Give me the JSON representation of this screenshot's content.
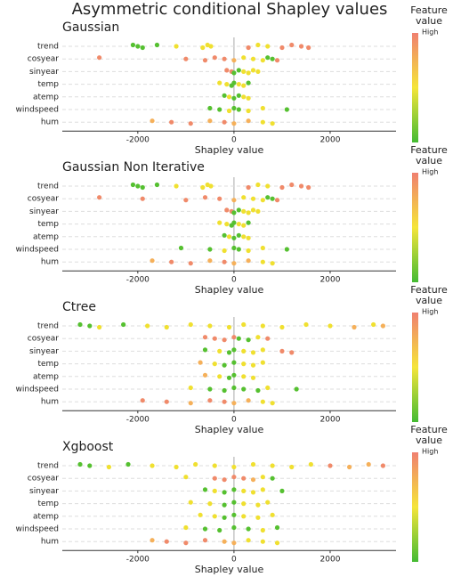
{
  "title": "Asymmetric conditional Shapley values",
  "chart_data": [
    {
      "type": "beeswarm",
      "title": "Gaussian",
      "xlabel": "Shapley value",
      "xlim": [
        -3570,
        3370
      ],
      "xticks": [
        -2000,
        0,
        2000
      ],
      "categories": [
        "trend",
        "cosyear",
        "sinyear",
        "temp",
        "atemp",
        "windspeed",
        "hum"
      ],
      "values": [
        [
          -2100,
          -2000,
          -1900,
          -1600,
          -1200,
          -650,
          -550,
          -480,
          300,
          500,
          700,
          1000,
          1200,
          1400,
          1550
        ],
        [
          -2800,
          -1000,
          -600,
          -400,
          -200,
          0,
          200,
          400,
          600,
          700,
          800,
          900
        ],
        [
          -150,
          -50,
          0,
          100,
          200,
          300,
          400,
          500
        ],
        [
          -300,
          -150,
          -50,
          0,
          100,
          200,
          300
        ],
        [
          -200,
          -100,
          0,
          100,
          200,
          300
        ],
        [
          -500,
          -300,
          -100,
          0,
          100,
          300,
          600,
          1100
        ],
        [
          -1700,
          -1300,
          -900,
          -500,
          -200,
          0,
          300,
          600,
          800
        ]
      ],
      "colors": [
        [
          "#55c030",
          "#55c030",
          "#55c030",
          "#55c030",
          "#f0e030",
          "#f0e030",
          "#f0e030",
          "#f0e030",
          "#f08a6a",
          "#f0e030",
          "#f0e030",
          "#f08a6a",
          "#f08a6a",
          "#f08a6a",
          "#f08a6a"
        ],
        [
          "#f08a6a",
          "#f08a6a",
          "#f08a6a",
          "#f08a6a",
          "#f08a6a",
          "#f5b05a",
          "#f0e030",
          "#f0e030",
          "#f0e030",
          "#55c030",
          "#55c030",
          "#f08a6a"
        ],
        [
          "#f08a6a",
          "#f08a6a",
          "#55c030",
          "#55c030",
          "#f0e030",
          "#f0e030",
          "#f0e030",
          "#f0e030"
        ],
        [
          "#f0e030",
          "#f0e030",
          "#55c030",
          "#55c030",
          "#f0e030",
          "#f0e030",
          "#55c030"
        ],
        [
          "#55c030",
          "#f0e030",
          "#55c030",
          "#55c030",
          "#f0e030",
          "#f0e030"
        ],
        [
          "#55c030",
          "#55c030",
          "#f0e030",
          "#55c030",
          "#55c030",
          "#f0e030",
          "#f0e030",
          "#55c030"
        ],
        [
          "#f5b05a",
          "#f08a6a",
          "#f08a6a",
          "#f5b05a",
          "#f08a6a",
          "#f5b05a",
          "#f5b05a",
          "#f0e030",
          "#f0e030"
        ]
      ],
      "legend_title": [
        "Feature",
        "value"
      ],
      "legend_high": "High",
      "colorscale": [
        "#f08070",
        "#f5e53a",
        "#44bb33"
      ]
    },
    {
      "type": "beeswarm",
      "title": "Gaussian Non Iterative",
      "xlabel": "Shapley value",
      "xlim": [
        -3570,
        3370
      ],
      "xticks": [
        -2000,
        0,
        2000
      ],
      "categories": [
        "trend",
        "cosyear",
        "sinyear",
        "temp",
        "atemp",
        "windspeed",
        "hum"
      ],
      "values": [
        [
          -2100,
          -2000,
          -1900,
          -1600,
          -1200,
          -650,
          -550,
          -480,
          300,
          500,
          700,
          1000,
          1200,
          1400,
          1550
        ],
        [
          -2800,
          -1900,
          -1000,
          -600,
          -300,
          0,
          200,
          400,
          600,
          700,
          800,
          900
        ],
        [
          -150,
          -50,
          0,
          100,
          200,
          300,
          400,
          500
        ],
        [
          -300,
          -150,
          -50,
          0,
          100,
          200,
          300
        ],
        [
          -200,
          -100,
          0,
          100,
          200,
          300
        ],
        [
          -1100,
          -500,
          -200,
          0,
          100,
          300,
          600,
          1100
        ],
        [
          -1700,
          -1300,
          -900,
          -500,
          -200,
          0,
          300,
          600,
          800
        ]
      ],
      "colors": [
        [
          "#55c030",
          "#55c030",
          "#55c030",
          "#55c030",
          "#f0e030",
          "#f0e030",
          "#f0e030",
          "#f0e030",
          "#f08a6a",
          "#f0e030",
          "#f0e030",
          "#f08a6a",
          "#f08a6a",
          "#f08a6a",
          "#f08a6a"
        ],
        [
          "#f08a6a",
          "#f08a6a",
          "#f08a6a",
          "#f08a6a",
          "#f08a6a",
          "#f5b05a",
          "#f0e030",
          "#f0e030",
          "#f0e030",
          "#55c030",
          "#55c030",
          "#f08a6a"
        ],
        [
          "#f08a6a",
          "#f08a6a",
          "#55c030",
          "#55c030",
          "#f0e030",
          "#f0e030",
          "#f0e030",
          "#f0e030"
        ],
        [
          "#f0e030",
          "#f0e030",
          "#55c030",
          "#55c030",
          "#f0e030",
          "#f0e030",
          "#55c030"
        ],
        [
          "#55c030",
          "#f0e030",
          "#55c030",
          "#55c030",
          "#f0e030",
          "#f0e030"
        ],
        [
          "#55c030",
          "#55c030",
          "#f0e030",
          "#55c030",
          "#55c030",
          "#f0e030",
          "#f0e030",
          "#55c030"
        ],
        [
          "#f5b05a",
          "#f08a6a",
          "#f08a6a",
          "#f5b05a",
          "#f08a6a",
          "#f5b05a",
          "#f5b05a",
          "#f0e030",
          "#f0e030"
        ]
      ],
      "legend_title": [
        "Feature",
        "value"
      ],
      "legend_high": "High",
      "colorscale": [
        "#f08070",
        "#f5e53a",
        "#44bb33"
      ]
    },
    {
      "type": "beeswarm",
      "title": "Ctree",
      "xlabel": "Shapley value",
      "xlim": [
        -3570,
        3370
      ],
      "xticks": [
        -2000,
        0,
        2000
      ],
      "categories": [
        "trend",
        "cosyear",
        "sinyear",
        "temp",
        "atemp",
        "windspeed",
        "hum"
      ],
      "values": [
        [
          -3200,
          -3000,
          -2800,
          -2300,
          -1800,
          -1400,
          -900,
          -500,
          -100,
          200,
          600,
          1000,
          1500,
          2000,
          2500,
          2900,
          3100
        ],
        [
          -600,
          -400,
          -200,
          0,
          100,
          300,
          500,
          700
        ],
        [
          -600,
          -300,
          -100,
          0,
          200,
          400,
          600,
          1000,
          1200
        ],
        [
          -700,
          -400,
          -200,
          0,
          200,
          400,
          600
        ],
        [
          -600,
          -300,
          -100,
          0,
          200,
          400
        ],
        [
          -900,
          -500,
          -200,
          0,
          200,
          500,
          700,
          1300
        ],
        [
          -1900,
          -1400,
          -900,
          -500,
          -200,
          0,
          300,
          600,
          800
        ]
      ],
      "colors": [
        [
          "#55c030",
          "#55c030",
          "#f0e030",
          "#55c030",
          "#f0e030",
          "#f0e030",
          "#f0e030",
          "#f0e030",
          "#f0e030",
          "#f0e030",
          "#f0e030",
          "#f0e030",
          "#f0e030",
          "#f0e030",
          "#f5b05a",
          "#f0e030",
          "#f5b05a"
        ],
        [
          "#f08a6a",
          "#f08a6a",
          "#f08a6a",
          "#f08a6a",
          "#55c030",
          "#55c030",
          "#f0e030",
          "#f08a6a"
        ],
        [
          "#55c030",
          "#f0e030",
          "#55c030",
          "#55c030",
          "#f0e030",
          "#f0e030",
          "#f0e030",
          "#f08a6a",
          "#f08a6a"
        ],
        [
          "#f5b05a",
          "#f0e030",
          "#55c030",
          "#55c030",
          "#f0e030",
          "#f0e030",
          "#f0e030"
        ],
        [
          "#f5b05a",
          "#f0e030",
          "#55c030",
          "#55c030",
          "#f0e030",
          "#f0e030"
        ],
        [
          "#f0e030",
          "#55c030",
          "#55c030",
          "#55c030",
          "#55c030",
          "#55c030",
          "#f0e030",
          "#55c030"
        ],
        [
          "#f08a6a",
          "#f08a6a",
          "#f5b05a",
          "#f08a6a",
          "#f08a6a",
          "#f5b05a",
          "#f5b05a",
          "#f0e030",
          "#f0e030"
        ]
      ],
      "legend_title": [
        "Feature",
        "value"
      ],
      "legend_high": "High",
      "colorscale": [
        "#f08070",
        "#f5e53a",
        "#44bb33"
      ]
    },
    {
      "type": "beeswarm",
      "title": "Xgboost",
      "xlabel": "Shapley value",
      "xlim": [
        -3570,
        3370
      ],
      "xticks": [
        -2000,
        0,
        2000
      ],
      "categories": [
        "trend",
        "cosyear",
        "sinyear",
        "temp",
        "atemp",
        "windspeed",
        "hum"
      ],
      "values": [
        [
          -3200,
          -3000,
          -2600,
          -2200,
          -1700,
          -1200,
          -800,
          -400,
          0,
          400,
          800,
          1200,
          1600,
          2000,
          2400,
          2800,
          3100
        ],
        [
          -1000,
          -400,
          -200,
          0,
          200,
          400,
          600,
          800
        ],
        [
          -600,
          -400,
          -200,
          0,
          200,
          400,
          600,
          1000
        ],
        [
          -900,
          -500,
          -200,
          0,
          200,
          500,
          700
        ],
        [
          -700,
          -400,
          -200,
          0,
          200,
          500,
          800
        ],
        [
          -1000,
          -600,
          -300,
          0,
          300,
          600,
          900
        ],
        [
          -1700,
          -1400,
          -1000,
          -600,
          -200,
          0,
          300,
          600,
          900
        ]
      ],
      "colors": [
        [
          "#55c030",
          "#55c030",
          "#f0e030",
          "#55c030",
          "#f0e030",
          "#f0e030",
          "#f0e030",
          "#f0e030",
          "#f0e030",
          "#f0e030",
          "#f0e030",
          "#f0e030",
          "#f0e030",
          "#f08a6a",
          "#f5b05a",
          "#f5b05a",
          "#f08a6a"
        ],
        [
          "#f0e030",
          "#f08a6a",
          "#f08a6a",
          "#f08a6a",
          "#f08a6a",
          "#f5b05a",
          "#f0e030",
          "#55c030"
        ],
        [
          "#55c030",
          "#f0e030",
          "#55c030",
          "#55c030",
          "#f0e030",
          "#f0e030",
          "#f0e030",
          "#55c030"
        ],
        [
          "#f0e030",
          "#f0e030",
          "#55c030",
          "#55c030",
          "#f0e030",
          "#f0e030",
          "#f0e030"
        ],
        [
          "#f0e030",
          "#f0e030",
          "#55c030",
          "#55c030",
          "#f0e030",
          "#f0e030",
          "#f0e030"
        ],
        [
          "#f0e030",
          "#55c030",
          "#55c030",
          "#55c030",
          "#55c030",
          "#f0e030",
          "#55c030"
        ],
        [
          "#f5b05a",
          "#f08a6a",
          "#f08a6a",
          "#f08a6a",
          "#f5b05a",
          "#f5b05a",
          "#f0e030",
          "#f0e030",
          "#f0e030"
        ]
      ],
      "legend_title": [
        "Feature",
        "value"
      ],
      "legend_high": "High",
      "colorscale": [
        "#f08070",
        "#f5e53a",
        "#44bb33"
      ]
    }
  ]
}
